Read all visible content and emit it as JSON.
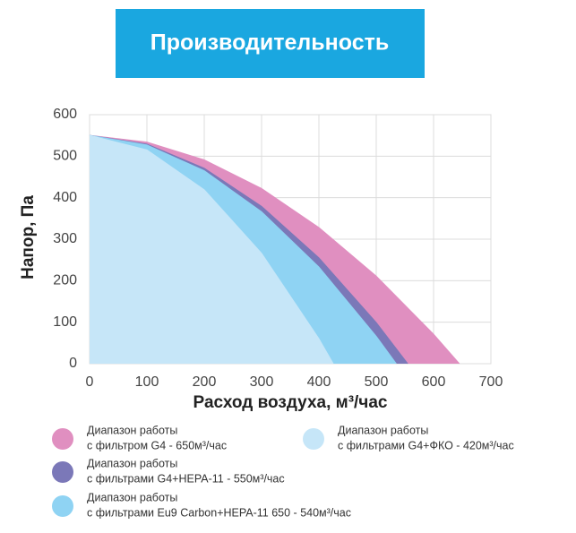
{
  "chart_data": {
    "type": "area",
    "title": "Производительность",
    "x_label": "Расход воздуха, м³/час",
    "y_label": "Напор, Па",
    "xlim": [
      0,
      700
    ],
    "xticks": [
      0,
      100,
      200,
      300,
      400,
      500,
      600,
      700
    ],
    "ylim": [
      0,
      600
    ],
    "yticks": [
      0,
      100,
      200,
      300,
      400,
      500,
      600
    ],
    "grid": true,
    "series": [
      {
        "name": [
          "Диапазон  работы",
          "с фильтром G4 - 650м³/час"
        ],
        "color": "#e08fc0",
        "x": [
          0,
          100,
          200,
          300,
          400,
          500,
          600,
          645
        ],
        "values": [
          550,
          534,
          491,
          422,
          328,
          211,
          71,
          0
        ]
      },
      {
        "name": [
          "Диапазон  работы",
          "с фильтрами G4+HEPA-11 - 550м³/час"
        ],
        "color": "#7b78b8",
        "x": [
          0,
          100,
          200,
          300,
          400,
          500,
          555
        ],
        "values": [
          550,
          529,
          471,
          379,
          255,
          99,
          0
        ]
      },
      {
        "name": [
          "Диапазон  работы",
          "с фильтрами Eu9 Carbon+HEPA-11 650 - 540м³/час"
        ],
        "color": "#8fd3f3",
        "x": [
          0,
          100,
          200,
          300,
          400,
          500,
          535
        ],
        "values": [
          550,
          527,
          465,
          366,
          233,
          66,
          0
        ]
      },
      {
        "name": [
          "Диапазон  работы",
          "с фильтрами G4+ФКО - 420м³/час"
        ],
        "color": "#c6e6f8",
        "x": [
          0,
          100,
          200,
          300,
          400,
          425
        ],
        "values": [
          550,
          515,
          419,
          266,
          60,
          0
        ]
      }
    ]
  }
}
